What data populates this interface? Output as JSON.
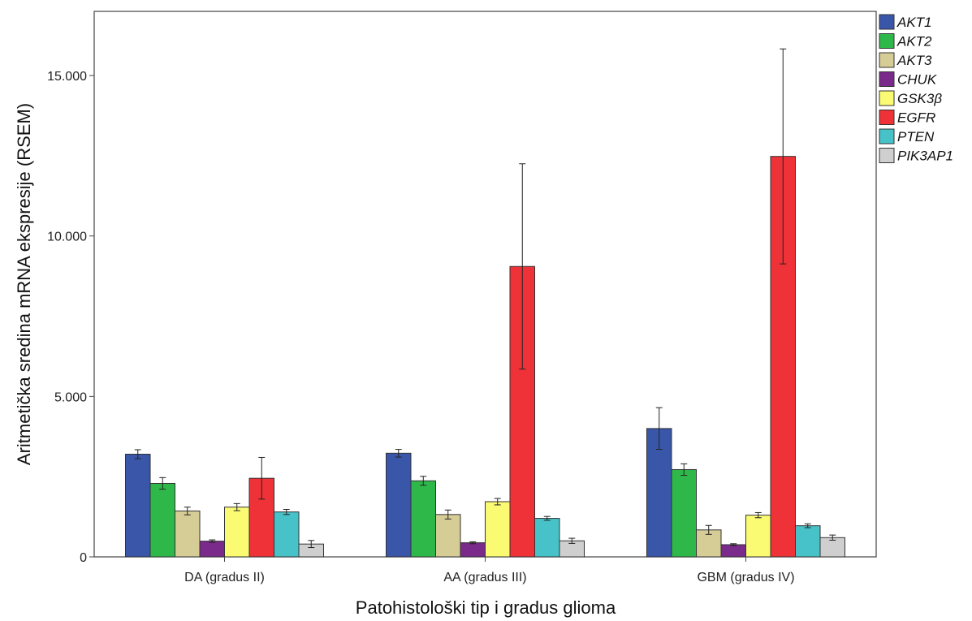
{
  "chart_data": {
    "type": "bar",
    "xlabel": "Patohistološki tip i gradus glioma",
    "ylabel": "Aritmetička sredina mRNA ekspresije (RSEM)",
    "ylim": [
      0,
      17000
    ],
    "yticks": [
      0,
      5000,
      10000,
      15000
    ],
    "ytick_labels": [
      "0",
      "5.000",
      "10.000",
      "15.000"
    ],
    "categories": [
      "DA (gradus II)",
      "AA (gradus III)",
      "GBM (gradus IV)"
    ],
    "grid": false,
    "legend_position": "right",
    "error_bars": true,
    "series": [
      {
        "name": "AKT1",
        "color": "#3a56a8",
        "values": [
          3200,
          3230,
          4000
        ],
        "error": [
          140,
          120,
          650
        ]
      },
      {
        "name": "AKT2",
        "color": "#2eb84a",
        "values": [
          2290,
          2370,
          2720
        ],
        "error": [
          180,
          140,
          180
        ]
      },
      {
        "name": "AKT3",
        "color": "#d6cc95",
        "values": [
          1430,
          1320,
          840
        ],
        "error": [
          120,
          140,
          140
        ]
      },
      {
        "name": "CHUK",
        "color": "#7a2a8a",
        "values": [
          490,
          440,
          380
        ],
        "error": [
          40,
          30,
          30
        ]
      },
      {
        "name": "GSK3β",
        "color": "#fafa73",
        "values": [
          1550,
          1720,
          1300
        ],
        "error": [
          110,
          100,
          80
        ]
      },
      {
        "name": "EGFR",
        "color": "#ee3237",
        "values": [
          2450,
          9050,
          12480
        ],
        "error": [
          650,
          3200,
          3350
        ]
      },
      {
        "name": "PTEN",
        "color": "#47c2c8",
        "values": [
          1400,
          1200,
          970
        ],
        "error": [
          80,
          60,
          60
        ]
      },
      {
        "name": "PIK3AP1",
        "color": "#cfcfcf",
        "values": [
          400,
          500,
          600
        ],
        "error": [
          110,
          80,
          80
        ]
      }
    ]
  }
}
